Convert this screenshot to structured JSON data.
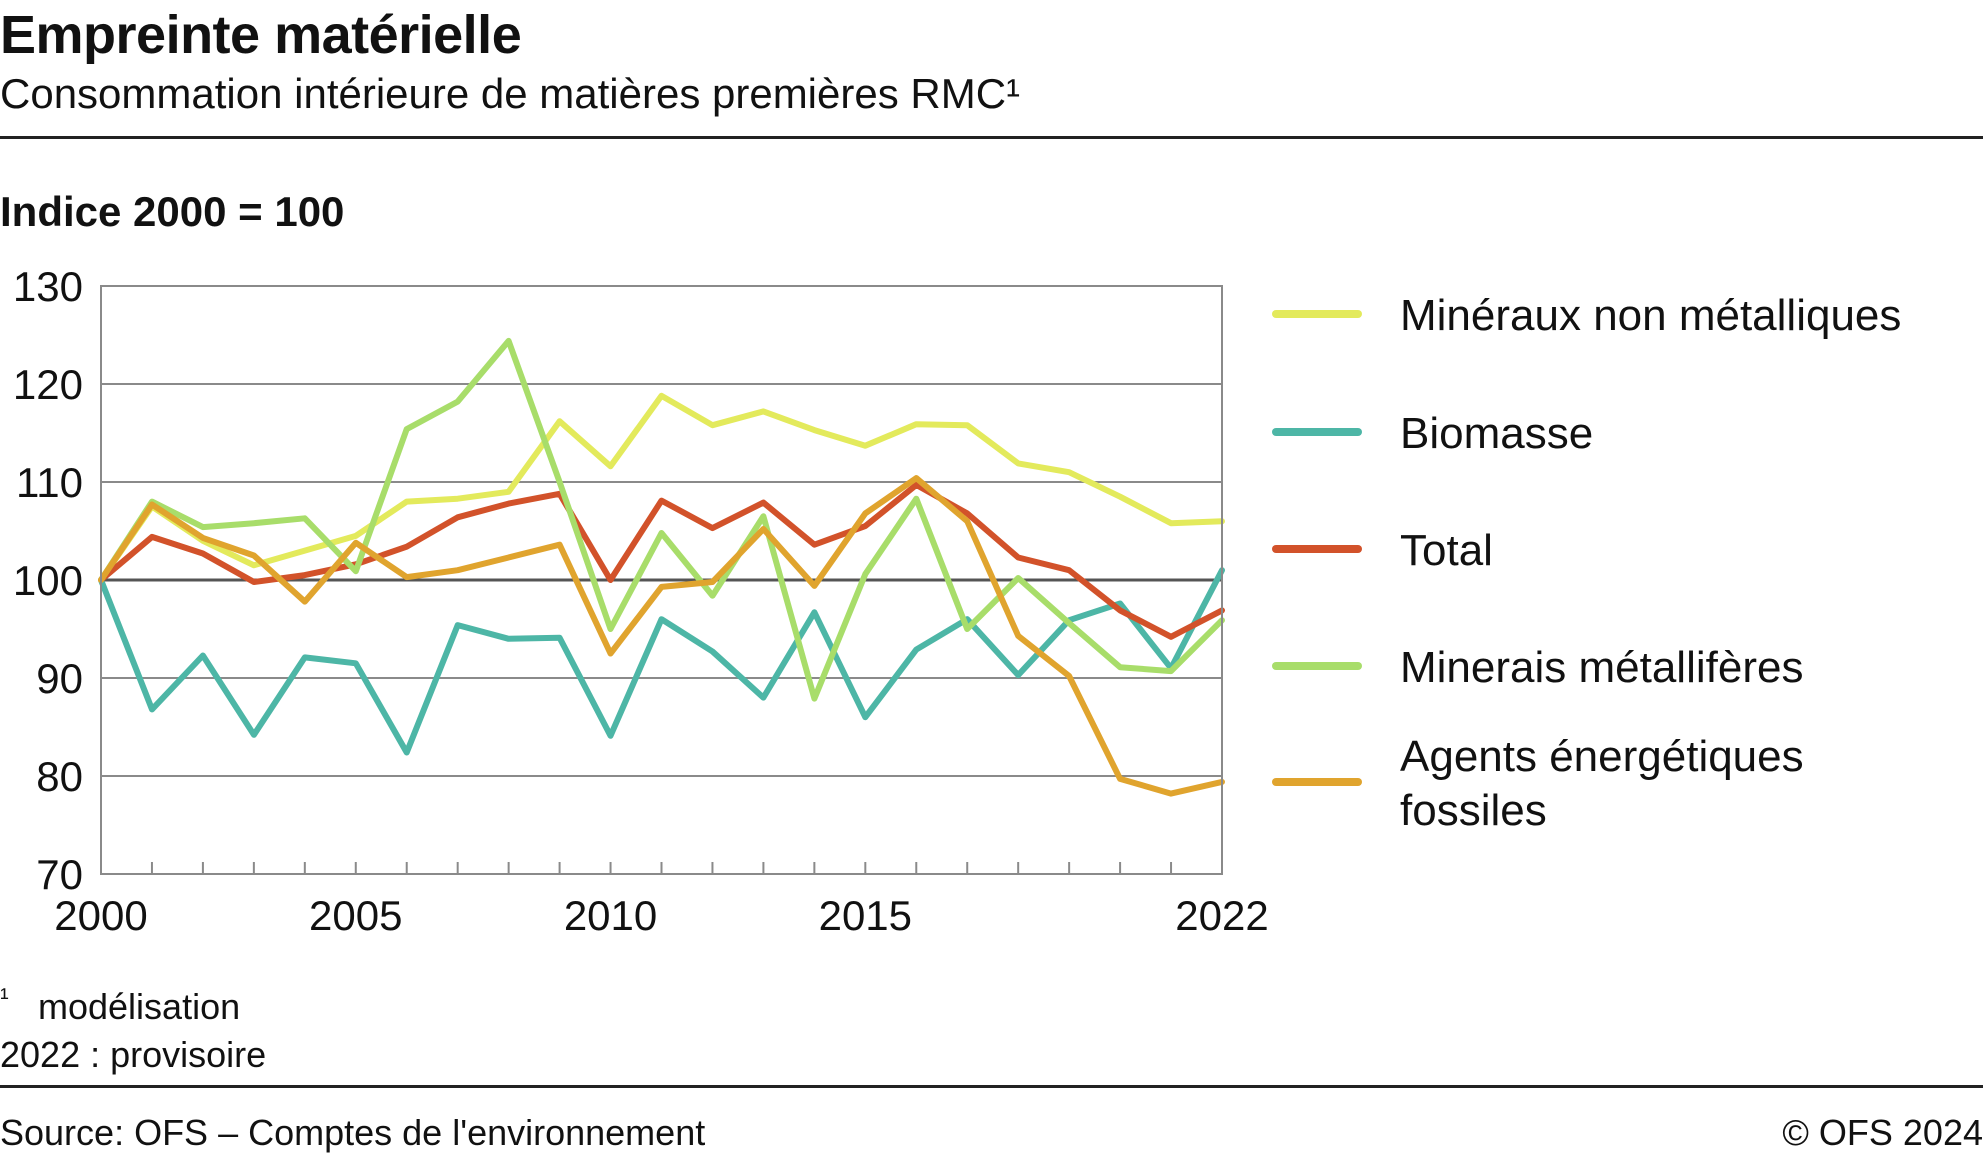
{
  "header": {
    "title": "Empreinte matérielle",
    "subtitle": "Consommation intérieure de matières premières RMC¹"
  },
  "chart_data": {
    "type": "line",
    "ylabel": "Indice 2000 = 100",
    "ylim": [
      70,
      130
    ],
    "yticks": [
      70,
      80,
      90,
      100,
      110,
      120,
      130
    ],
    "xlim": [
      2000,
      2022
    ],
    "xtick_labels": [
      2000,
      2005,
      2010,
      2015,
      2022
    ],
    "x": [
      2000,
      2001,
      2002,
      2003,
      2004,
      2005,
      2006,
      2007,
      2008,
      2009,
      2010,
      2011,
      2012,
      2013,
      2014,
      2015,
      2016,
      2017,
      2018,
      2019,
      2020,
      2021,
      2022
    ],
    "grid": true,
    "legend_position": "right",
    "series": [
      {
        "name": "Minéraux non métalliques",
        "color": "#e3ea5c",
        "values": [
          100,
          107.5,
          104,
          101.5,
          103,
          104.5,
          108,
          108.3,
          109,
          116.2,
          111.6,
          118.8,
          115.8,
          117.2,
          115.3,
          113.7,
          115.9,
          115.8,
          111.9,
          111,
          108.5,
          105.8,
          106
        ]
      },
      {
        "name": "Biomasse",
        "color": "#4db6a6",
        "values": [
          100,
          86.8,
          92.3,
          84.2,
          92.1,
          91.5,
          82.4,
          95.4,
          94,
          94.1,
          84.1,
          96,
          92.7,
          88,
          96.7,
          86,
          92.9,
          96,
          90.3,
          95.9,
          97.6,
          91,
          101
        ]
      },
      {
        "name": "Total",
        "color": "#d2522a",
        "values": [
          100,
          104.4,
          102.7,
          99.8,
          100.5,
          101.6,
          103.4,
          106.4,
          107.8,
          108.8,
          100,
          108.1,
          105.3,
          107.9,
          103.6,
          105.5,
          109.7,
          106.8,
          102.3,
          101,
          96.9,
          94.2,
          96.9
        ]
      },
      {
        "name": "Minerais métallifères",
        "color": "#a8dd6a",
        "values": [
          100,
          108,
          105.4,
          105.8,
          106.3,
          100.9,
          115.4,
          118.2,
          124.4,
          110,
          95,
          104.8,
          98.4,
          106.5,
          87.9,
          100.6,
          108.3,
          95,
          100.2,
          95.6,
          91.1,
          90.7,
          95.9
        ]
      },
      {
        "name": "Agents énergétiques fossiles",
        "name_lines": [
          "Agents énergétiques",
          "fossiles"
        ],
        "color": "#e0a42e",
        "values": [
          100,
          107.7,
          104.3,
          102.5,
          97.8,
          103.8,
          100.3,
          101,
          102.3,
          103.6,
          92.5,
          99.3,
          99.8,
          105.2,
          99.4,
          106.8,
          110.4,
          106,
          94.3,
          90.2,
          79.7,
          78.2,
          79.4
        ]
      }
    ]
  },
  "notes": {
    "sup": "¹",
    "line1": "modélisation",
    "line2": "2022 : provisoire"
  },
  "footer": {
    "source": "Source: OFS – Comptes de l'environnement",
    "copyright": "© OFS 2024"
  }
}
